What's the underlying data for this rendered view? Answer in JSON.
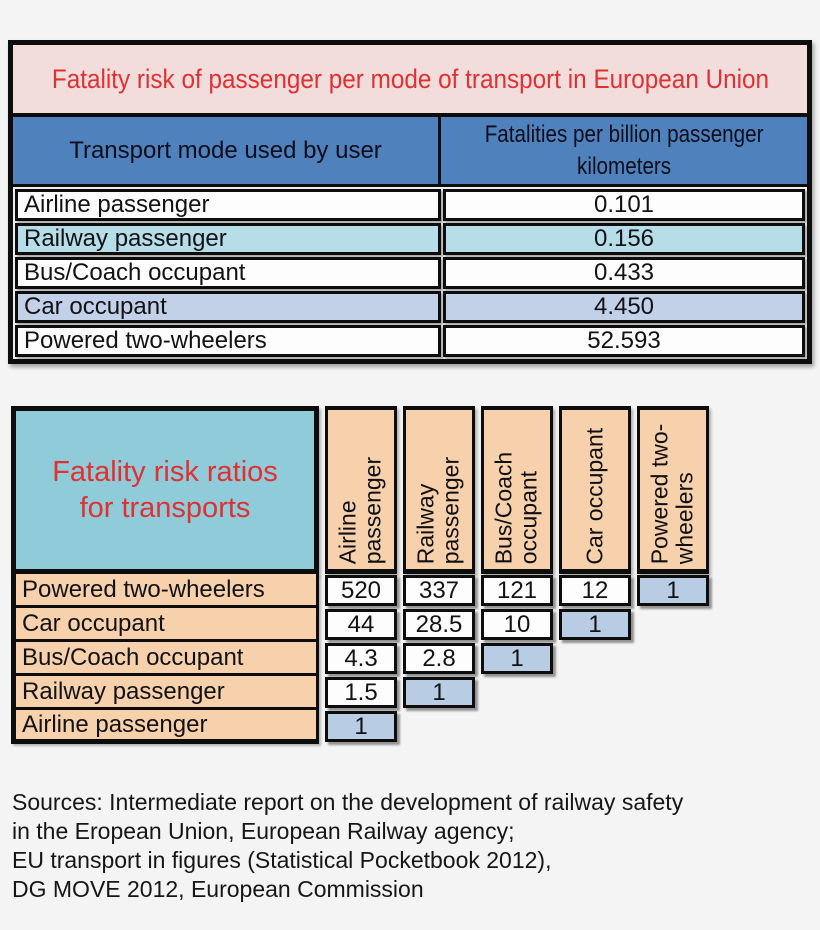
{
  "colors": {
    "page_background": "#f5f4f4",
    "border_black": "#0d0d0d",
    "title_pink": "#f2dcdc",
    "title_red_text": "#e03132",
    "header_blue": "#4f81bd",
    "row_aqua": "#b7dee8",
    "row_lavender": "#c2d1e8",
    "ratios_teal": "#8fcbd9",
    "ratios_peach": "#f6d1ab",
    "diagonal_blue": "#b8cce4"
  },
  "table1": {
    "title": "Fatality risk of passenger per mode of transport in European Union",
    "columns": [
      "Transport mode used by user",
      "Fatalities per billion passenger\nkilometers"
    ],
    "rows": [
      {
        "mode": "Airline passenger",
        "value": "0.101"
      },
      {
        "mode": "Railway passenger",
        "value": "0.156"
      },
      {
        "mode": "Bus/Coach occupant",
        "value": "0.433"
      },
      {
        "mode": "Car occupant",
        "value": "4.450"
      },
      {
        "mode": "Powered two-wheelers",
        "value": "52.593"
      }
    ]
  },
  "table2": {
    "title": "Fatality risk ratios\nfor transports",
    "column_headers": [
      "Airline\npassenger",
      "Railway\npassenger",
      "Bus/Coach\noccupant",
      "Car occupant",
      "Powered two-\nwheelers"
    ],
    "rows": [
      {
        "label": "Powered two-wheelers",
        "values": [
          "520",
          "337",
          "121",
          "12",
          "1"
        ]
      },
      {
        "label": "Car occupant",
        "values": [
          "44",
          "28.5",
          "10",
          "1"
        ]
      },
      {
        "label": "Bus/Coach occupant",
        "values": [
          "4.3",
          "2.8",
          "1"
        ]
      },
      {
        "label": "Railway passenger",
        "values": [
          "1.5",
          "1"
        ]
      },
      {
        "label": "Airline passenger",
        "values": [
          "1"
        ]
      }
    ]
  },
  "sources": {
    "lines": [
      "Sources: Intermediate report on the development of railway safety",
      "in the Eropean Union, European Railway agency;",
      "EU transport in figures (Statistical Pocketbook 2012),",
      "DG MOVE 2012, European Commission"
    ]
  },
  "chart_data": [
    {
      "type": "table",
      "title": "Fatality risk of passenger per mode of transport in European Union",
      "columns": [
        "Transport mode used by user",
        "Fatalities per billion passenger kilometers"
      ],
      "rows": [
        [
          "Airline passenger",
          0.101
        ],
        [
          "Railway passenger",
          0.156
        ],
        [
          "Bus/Coach occupant",
          0.433
        ],
        [
          "Car occupant",
          4.45
        ],
        [
          "Powered two-wheelers",
          52.593
        ]
      ]
    },
    {
      "type": "table",
      "title": "Fatality risk ratios for transports",
      "columns": [
        "",
        "Airline passenger",
        "Railway passenger",
        "Bus/Coach occupant",
        "Car occupant",
        "Powered two-wheelers"
      ],
      "rows": [
        [
          "Powered two-wheelers",
          520,
          337,
          121,
          12,
          1
        ],
        [
          "Car occupant",
          44,
          28.5,
          10,
          1,
          null
        ],
        [
          "Bus/Coach occupant",
          4.3,
          2.8,
          1,
          null,
          null
        ],
        [
          "Railway passenger",
          1.5,
          1,
          null,
          null,
          null
        ],
        [
          "Airline passenger",
          1,
          null,
          null,
          null,
          null
        ]
      ],
      "layout_note": "lower-left triangular matrix; diagonal cells of value 1 highlighted blue"
    }
  ]
}
